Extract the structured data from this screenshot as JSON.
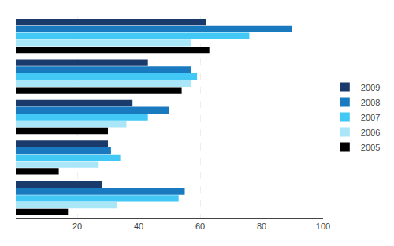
{
  "chart_data": {
    "type": "bar",
    "orientation": "horizontal",
    "categories": [
      null,
      null,
      null,
      null,
      null
    ],
    "series": [
      {
        "name": "2009",
        "color": "#1a3a6b",
        "values": [
          62,
          43,
          38,
          30,
          28
        ]
      },
      {
        "name": "2008",
        "color": "#1a7abf",
        "values": [
          90,
          57,
          50,
          31,
          55
        ]
      },
      {
        "name": "2007",
        "color": "#41c8f5",
        "values": [
          76,
          59,
          43,
          34,
          53
        ]
      },
      {
        "name": "2006",
        "color": "#a8e6f8",
        "values": [
          57,
          57,
          36,
          27,
          33
        ]
      },
      {
        "name": "2005",
        "color": "#000000",
        "values": [
          63,
          54,
          30,
          14,
          17
        ]
      }
    ],
    "xlim": [
      0,
      100
    ],
    "xticks": [
      20,
      40,
      60,
      80,
      100
    ],
    "grid": true,
    "legend": "right",
    "tick_labels": "x"
  }
}
